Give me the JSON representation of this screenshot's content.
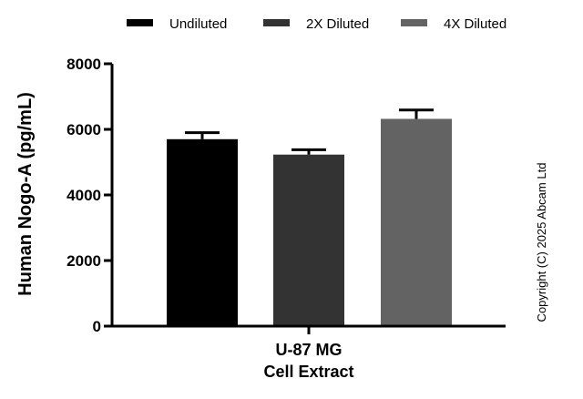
{
  "chart_data": {
    "type": "bar",
    "ylabel": "Human Nogo-A (pg/mL)",
    "xlabel": "",
    "category_label_lines": [
      "U-87 MG",
      "Cell Extract"
    ],
    "ylim": [
      0,
      8000
    ],
    "yticks": [
      0,
      2000,
      4000,
      6000,
      8000
    ],
    "grid": false,
    "legend_placement": "top",
    "series": [
      {
        "name": "Undiluted",
        "value": 5700,
        "error": 200,
        "color": "#000000"
      },
      {
        "name": "2X Diluted",
        "value": 5230,
        "error": 150,
        "color": "#333333"
      },
      {
        "name": "4X Diluted",
        "value": 6320,
        "error": 270,
        "color": "#636363"
      }
    ]
  },
  "copyright": "Copyright (C) 2025 Abcam Ltd"
}
